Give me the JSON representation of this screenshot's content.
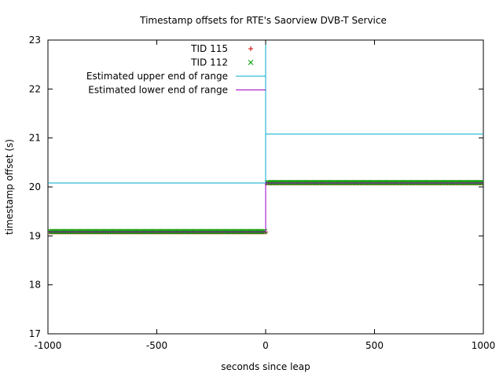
{
  "chart_data": {
    "type": "scatter",
    "title": "Timestamp offsets for RTE's Saorview DVB-T Service",
    "xlabel": "seconds since leap",
    "ylabel": "timestamp offset (s)",
    "xlim": [
      -1000,
      1000
    ],
    "ylim": [
      17,
      23
    ],
    "xticks": [
      -1000,
      -500,
      0,
      500,
      1000
    ],
    "yticks": [
      17,
      18,
      19,
      20,
      21,
      22,
      23
    ],
    "grid": false,
    "legend_position": "top-center",
    "series": [
      {
        "name": "TID 115",
        "kind": "points",
        "marker": "plus",
        "color": "#cc0000",
        "segments": [
          {
            "x_start": -1000,
            "x_end": 0,
            "y": 19.08,
            "step": 8
          },
          {
            "x_start": 4,
            "x_end": 1000,
            "y": 20.08,
            "step": 8
          }
        ]
      },
      {
        "name": "TID 112",
        "kind": "points",
        "marker": "cross",
        "color": "#00a000",
        "segments": [
          {
            "x_start": -996,
            "x_end": 0,
            "y": 19.09,
            "step": 8
          },
          {
            "x_start": 8,
            "x_end": 1000,
            "y": 20.09,
            "step": 8
          }
        ]
      },
      {
        "name": "Estimated upper end of range",
        "kind": "line",
        "color": "#00aacc",
        "points": [
          [
            -1000,
            20.08
          ],
          [
            0,
            20.08
          ],
          [
            0,
            23
          ],
          [
            0,
            21.08
          ],
          [
            1000,
            21.08
          ]
        ]
      },
      {
        "name": "Estimated lower end of range",
        "kind": "line",
        "color": "#9900cc",
        "points": [
          [
            -1000,
            19.08
          ],
          [
            0,
            19.08
          ],
          [
            0,
            20.08
          ],
          [
            1000,
            20.08
          ]
        ]
      }
    ]
  }
}
